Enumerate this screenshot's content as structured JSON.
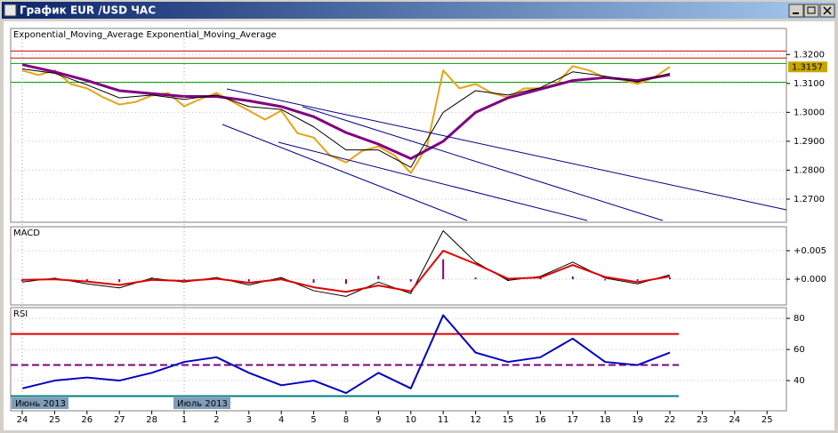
{
  "window": {
    "title": "График EUR /USD ЧАС"
  },
  "x_axis": {
    "categories": [
      "24",
      "25",
      "26",
      "27",
      "28",
      "1",
      "2",
      "3",
      "4",
      "5",
      "8",
      "9",
      "10",
      "11",
      "12",
      "15",
      "16",
      "17",
      "18",
      "19",
      "22",
      "23",
      "24",
      "25"
    ],
    "months": [
      "Июнь 2013",
      null,
      null,
      null,
      null,
      "Июль 2013",
      null,
      null,
      null,
      null,
      null,
      null,
      null,
      null,
      null,
      null,
      null,
      null,
      null,
      null,
      null,
      null,
      null,
      null
    ]
  },
  "chart_data": [
    {
      "type": "line",
      "title": "Exponential_Moving_Average Exponential_Moving_Average",
      "ylim": [
        1.262,
        1.329
      ],
      "yticks": [
        {
          "value": 1.27,
          "label": "1.2700"
        },
        {
          "value": 1.28,
          "label": "1.2800"
        },
        {
          "value": 1.29,
          "label": "1.2900"
        },
        {
          "value": 1.3,
          "label": "1.3000"
        },
        {
          "value": 1.31,
          "label": "1.3100"
        },
        {
          "value": 1.32,
          "label": "1.3200"
        }
      ],
      "grid": true,
      "hlines": [
        {
          "value": 1.3212,
          "color": "#e00000"
        },
        {
          "value": 1.3188,
          "color": "#e00000"
        },
        {
          "value": 1.3169,
          "color": "#00a000"
        },
        {
          "value": 1.3104,
          "color": "#00a000"
        }
      ],
      "last_price": 1.3157,
      "series": [
        {
          "color": "#e8a317",
          "style": "line",
          "width": 2,
          "values": [
            1.3145,
            1.3129,
            1.3145,
            1.3098,
            1.3083,
            1.3052,
            1.3027,
            1.3036,
            1.3058,
            1.3067,
            1.3021,
            1.3046,
            1.3067,
            1.3036,
            1.3006,
            1.2975,
            1.3006,
            1.2928,
            1.2913,
            1.2851,
            1.2827,
            1.2867,
            1.2882,
            1.2851,
            1.279,
            1.2882,
            1.3145,
            1.3083,
            1.3098,
            1.3067,
            1.3052,
            1.3083,
            1.3083,
            1.3098,
            1.316,
            1.3145,
            1.312,
            1.3114,
            1.3098,
            1.312,
            1.3157
          ]
        },
        {
          "color": "#800080",
          "style": "line",
          "width": 3,
          "values": [
            1.3165,
            1.314,
            1.311,
            1.3075,
            1.3065,
            1.3055,
            1.3055,
            1.304,
            1.302,
            1.2985,
            1.293,
            1.289,
            1.284,
            1.29,
            1.3,
            1.305,
            1.308,
            1.311,
            1.312,
            1.311,
            1.313
          ]
        },
        {
          "color": "#000000",
          "style": "line",
          "width": 1,
          "values": [
            1.315,
            1.3135,
            1.3095,
            1.305,
            1.306,
            1.3045,
            1.306,
            1.302,
            1.301,
            1.295,
            1.287,
            1.287,
            1.281,
            1.3,
            1.3075,
            1.306,
            1.3085,
            1.314,
            1.3125,
            1.3105,
            1.3135
          ]
        }
      ]
    },
    {
      "type": "line",
      "title": "MACD",
      "ylim": [
        -0.0045,
        0.0092
      ],
      "yticks": [
        {
          "value": 0.005,
          "label": "+0.005"
        },
        {
          "value": 0,
          "label": "+0.000"
        }
      ],
      "grid": true,
      "hlines": [],
      "series": [
        {
          "color": "#800080",
          "style": "histogram",
          "width": 2,
          "values": [
            -0.0004,
            0.0002,
            -0.0004,
            -0.0005,
            0.0003,
            -0.0002,
            0.0002,
            -0.0004,
            0.0003,
            -0.0006,
            -0.0008,
            0.0006,
            -0.0004,
            0.0035,
            0.0003,
            -0.0003,
            0.0002,
            0.0005,
            -0.0002,
            -0.0003,
            0.0003
          ]
        },
        {
          "color": "#000000",
          "style": "line",
          "width": 1,
          "values": [
            -0.0005,
            0.0002,
            -0.0008,
            -0.0015,
            0.0002,
            -0.0005,
            0.0003,
            -0.001,
            0.0003,
            -0.002,
            -0.003,
            -0.0005,
            -0.0025,
            0.0085,
            0.003,
            -0.0002,
            0.0005,
            0.003,
            0.0002,
            -0.0008,
            0.0008
          ]
        },
        {
          "color": "#e00000",
          "style": "line",
          "width": 2,
          "values": [
            -0.0001,
            0,
            -0.0004,
            -0.001,
            -0.0001,
            -0.0003,
            0.0001,
            -0.0006,
            0,
            -0.0014,
            -0.0022,
            -0.0011,
            -0.0021,
            0.005,
            0.0027,
            0.0001,
            0.0003,
            0.0025,
            0.0004,
            -0.0005,
            0.0005
          ]
        }
      ]
    },
    {
      "type": "line",
      "title": "RSI",
      "ylim": [
        20.6,
        86.9
      ],
      "yticks": [
        40,
        60,
        80
      ],
      "grid": true,
      "hlines": [
        {
          "value": 70,
          "color": "#e00000"
        },
        {
          "value": 50,
          "color": "#800080",
          "dash": true
        },
        {
          "value": 30,
          "color": "#008080"
        }
      ],
      "series": [
        {
          "color": "#0000c0",
          "style": "line",
          "width": 2,
          "values": [
            35,
            40,
            42,
            40,
            45,
            52,
            55,
            45,
            37,
            40,
            32,
            45,
            35,
            82,
            58,
            52,
            55,
            67,
            52,
            50,
            58
          ]
        }
      ]
    }
  ]
}
